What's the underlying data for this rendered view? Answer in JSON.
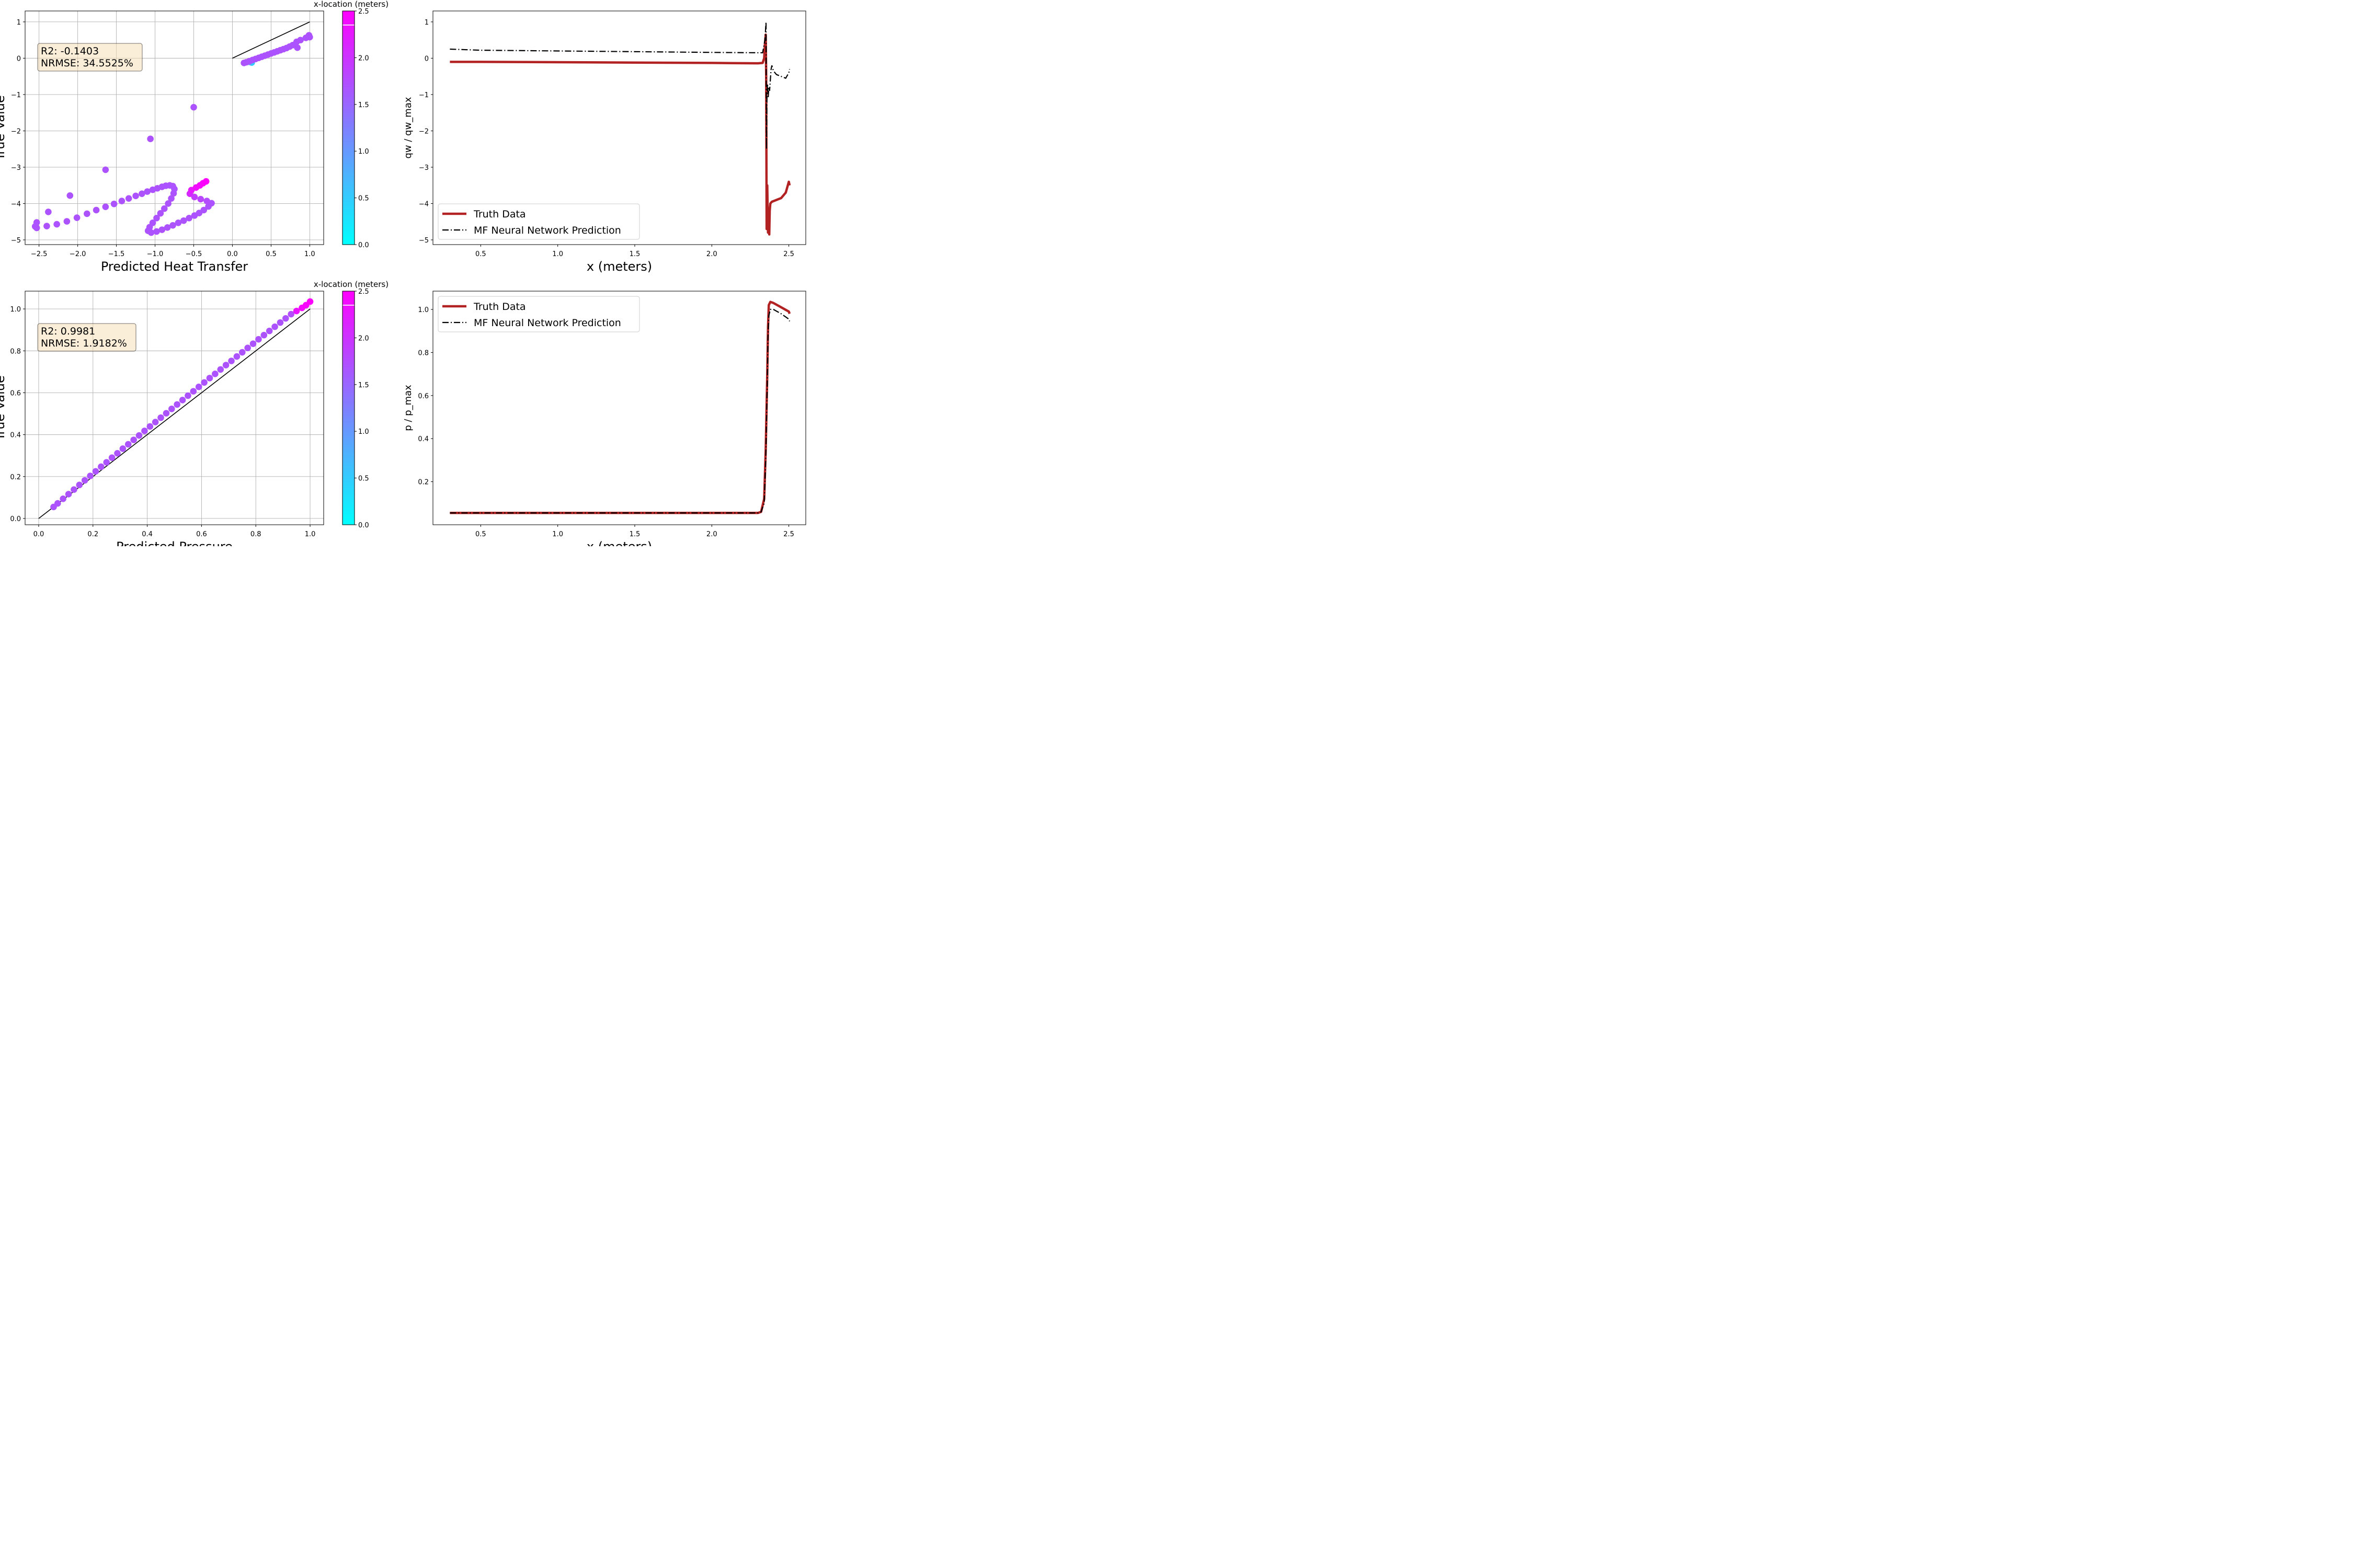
{
  "colors": {
    "cmap_low": "#00ffff",
    "cmap_high": "#ff00ff",
    "truth_line": "#b22222",
    "prediction_line": "#000000",
    "statbox_fill": "#f5deb3",
    "grid": "#b0b0b0"
  },
  "chart_data": [
    {
      "type": "scatter",
      "panel": "top-left",
      "xlabel": "Predicted Heat Transfer",
      "ylabel": "True Value",
      "xlim": [
        -2.68,
        1.18
      ],
      "ylim": [
        -5.13,
        1.3
      ],
      "xticks": [
        -2.5,
        -2.0,
        -1.5,
        -1.0,
        -0.5,
        0.0,
        0.5,
        1.0
      ],
      "xtick_labels": [
        "−2.5",
        "−2.0",
        "−1.5",
        "−1.0",
        "−0.5",
        "0.0",
        "0.5",
        "1.0"
      ],
      "yticks": [
        -5,
        -4,
        -3,
        -2,
        -1,
        0,
        1
      ],
      "ytick_labels": [
        "−5",
        "−4",
        "−3",
        "−2",
        "−1",
        "0",
        "1"
      ],
      "grid": true,
      "reference_line": [
        [
          0,
          0
        ],
        [
          1,
          1
        ]
      ],
      "stats_lines": [
        "R2: -0.1403",
        "NRMSE: 34.5525%"
      ],
      "colorbar": {
        "label": "x-location (meters)",
        "range": [
          0.0,
          2.5
        ],
        "ticks": [
          "0.0",
          "0.5",
          "1.0",
          "1.5",
          "2.0",
          "2.5"
        ],
        "marker_value": 2.35,
        "colormap": "cool"
      },
      "points": [
        {
          "x": 0.25,
          "y": -0.12,
          "c": 0.5
        },
        {
          "x": 0.22,
          "y": -0.1,
          "c": 0.9
        },
        {
          "x": 0.15,
          "y": -0.13,
          "c": 1.7
        },
        {
          "x": 0.18,
          "y": -0.11,
          "c": 1.7
        },
        {
          "x": 0.22,
          "y": -0.08,
          "c": 1.7
        },
        {
          "x": 0.26,
          "y": -0.05,
          "c": 1.7
        },
        {
          "x": 0.3,
          "y": -0.02,
          "c": 1.7
        },
        {
          "x": 0.34,
          "y": 0.01,
          "c": 1.7
        },
        {
          "x": 0.38,
          "y": 0.04,
          "c": 1.7
        },
        {
          "x": 0.42,
          "y": 0.07,
          "c": 1.7
        },
        {
          "x": 0.46,
          "y": 0.1,
          "c": 1.7
        },
        {
          "x": 0.5,
          "y": 0.13,
          "c": 1.7
        },
        {
          "x": 0.54,
          "y": 0.16,
          "c": 1.7
        },
        {
          "x": 0.58,
          "y": 0.19,
          "c": 1.7
        },
        {
          "x": 0.62,
          "y": 0.22,
          "c": 1.7
        },
        {
          "x": 0.66,
          "y": 0.25,
          "c": 1.7
        },
        {
          "x": 0.7,
          "y": 0.28,
          "c": 1.7
        },
        {
          "x": 0.74,
          "y": 0.32,
          "c": 1.7
        },
        {
          "x": 0.78,
          "y": 0.36,
          "c": 1.7
        },
        {
          "x": 0.83,
          "y": 0.45,
          "c": 1.7
        },
        {
          "x": 0.88,
          "y": 0.5,
          "c": 1.7
        },
        {
          "x": 0.95,
          "y": 0.56,
          "c": 1.7
        },
        {
          "x": 0.99,
          "y": 0.63,
          "c": 1.7
        },
        {
          "x": 1.0,
          "y": 0.58,
          "c": 1.7
        },
        {
          "x": 0.84,
          "y": 0.29,
          "c": 1.7
        },
        {
          "x": -0.5,
          "y": -1.35,
          "c": 1.7
        },
        {
          "x": -1.06,
          "y": -2.22,
          "c": 1.7
        },
        {
          "x": -1.64,
          "y": -3.07,
          "c": 1.7
        },
        {
          "x": -2.1,
          "y": -3.78,
          "c": 1.7
        },
        {
          "x": -2.38,
          "y": -4.23,
          "c": 1.7
        },
        {
          "x": -2.53,
          "y": -4.52,
          "c": 1.7
        },
        {
          "x": -2.55,
          "y": -4.63,
          "c": 1.7
        },
        {
          "x": -2.53,
          "y": -4.67,
          "c": 1.7
        },
        {
          "x": -2.4,
          "y": -4.62,
          "c": 1.7
        },
        {
          "x": -2.27,
          "y": -4.57,
          "c": 1.7
        },
        {
          "x": -2.14,
          "y": -4.49,
          "c": 1.7
        },
        {
          "x": -2.01,
          "y": -4.39,
          "c": 1.7
        },
        {
          "x": -1.88,
          "y": -4.28,
          "c": 1.7
        },
        {
          "x": -1.76,
          "y": -4.18,
          "c": 1.7
        },
        {
          "x": -1.64,
          "y": -4.09,
          "c": 1.7
        },
        {
          "x": -1.53,
          "y": -4.01,
          "c": 1.7
        },
        {
          "x": -1.43,
          "y": -3.93,
          "c": 1.7
        },
        {
          "x": -1.34,
          "y": -3.86,
          "c": 1.7
        },
        {
          "x": -1.25,
          "y": -3.79,
          "c": 1.7
        },
        {
          "x": -1.17,
          "y": -3.73,
          "c": 1.7
        },
        {
          "x": -1.1,
          "y": -3.67,
          "c": 1.7
        },
        {
          "x": -1.03,
          "y": -3.62,
          "c": 1.7
        },
        {
          "x": -0.97,
          "y": -3.58,
          "c": 1.7
        },
        {
          "x": -0.91,
          "y": -3.54,
          "c": 1.7
        },
        {
          "x": -0.86,
          "y": -3.51,
          "c": 1.7
        },
        {
          "x": -0.81,
          "y": -3.5,
          "c": 1.7
        },
        {
          "x": -0.77,
          "y": -3.52,
          "c": 1.7
        },
        {
          "x": -0.75,
          "y": -3.6,
          "c": 1.7
        },
        {
          "x": -0.76,
          "y": -3.72,
          "c": 1.7
        },
        {
          "x": -0.79,
          "y": -3.86,
          "c": 1.7
        },
        {
          "x": -0.83,
          "y": -4.0,
          "c": 1.7
        },
        {
          "x": -0.88,
          "y": -4.14,
          "c": 1.7
        },
        {
          "x": -0.93,
          "y": -4.27,
          "c": 1.7
        },
        {
          "x": -0.98,
          "y": -4.4,
          "c": 1.7
        },
        {
          "x": -1.03,
          "y": -4.53,
          "c": 1.7
        },
        {
          "x": -1.07,
          "y": -4.65,
          "c": 1.7
        },
        {
          "x": -1.09,
          "y": -4.75,
          "c": 1.7
        },
        {
          "x": -1.05,
          "y": -4.8,
          "c": 1.7
        },
        {
          "x": -0.98,
          "y": -4.77,
          "c": 1.7
        },
        {
          "x": -0.91,
          "y": -4.72,
          "c": 1.7
        },
        {
          "x": -0.84,
          "y": -4.66,
          "c": 1.7
        },
        {
          "x": -0.77,
          "y": -4.6,
          "c": 1.7
        },
        {
          "x": -0.7,
          "y": -4.53,
          "c": 1.7
        },
        {
          "x": -0.63,
          "y": -4.47,
          "c": 1.7
        },
        {
          "x": -0.56,
          "y": -4.4,
          "c": 1.7
        },
        {
          "x": -0.49,
          "y": -4.33,
          "c": 1.7
        },
        {
          "x": -0.43,
          "y": -4.26,
          "c": 1.7
        },
        {
          "x": -0.37,
          "y": -4.18,
          "c": 1.7
        },
        {
          "x": -0.31,
          "y": -4.08,
          "c": 1.7
        },
        {
          "x": -0.27,
          "y": -3.99,
          "c": 1.7
        },
        {
          "x": -0.33,
          "y": -3.93,
          "c": 1.75
        },
        {
          "x": -0.41,
          "y": -3.88,
          "c": 1.8
        },
        {
          "x": -0.49,
          "y": -3.82,
          "c": 1.9
        },
        {
          "x": -0.55,
          "y": -3.73,
          "c": 2.1
        },
        {
          "x": -0.53,
          "y": -3.63,
          "c": 2.25
        },
        {
          "x": -0.47,
          "y": -3.56,
          "c": 2.35
        },
        {
          "x": -0.42,
          "y": -3.5,
          "c": 2.4
        },
        {
          "x": -0.38,
          "y": -3.44,
          "c": 2.45
        },
        {
          "x": -0.34,
          "y": -3.39,
          "c": 2.5
        }
      ]
    },
    {
      "type": "line",
      "panel": "top-right",
      "xlabel": "x (meters)",
      "ylabel": "qw / qw_max",
      "xlim": [
        0.19,
        2.61
      ],
      "ylim": [
        -5.13,
        1.3
      ],
      "xticks": [
        0.5,
        1.0,
        1.5,
        2.0,
        2.5
      ],
      "xtick_labels": [
        "0.5",
        "1.0",
        "1.5",
        "2.0",
        "2.5"
      ],
      "yticks": [
        -5,
        -4,
        -3,
        -2,
        -1,
        0,
        1
      ],
      "ytick_labels": [
        "−5",
        "−4",
        "−3",
        "−2",
        "−1",
        "0",
        "1"
      ],
      "grid": false,
      "legend_position": "lower-left",
      "series": [
        {
          "name": "Truth Data",
          "style": "solid",
          "x": [
            0.3,
            0.5,
            1.0,
            1.5,
            2.0,
            2.3,
            2.33,
            2.34,
            2.345,
            2.35,
            2.353,
            2.356,
            2.36,
            2.365,
            2.37,
            2.373,
            2.376,
            2.38,
            2.39,
            2.42,
            2.45,
            2.48,
            2.5,
            2.505
          ],
          "y": [
            -0.1,
            -0.1,
            -0.11,
            -0.12,
            -0.13,
            -0.14,
            -0.13,
            0.0,
            0.4,
            0.65,
            -0.5,
            -4.7,
            -3.5,
            -4.8,
            -4.5,
            -4.85,
            -4.2,
            -4.0,
            -3.95,
            -3.9,
            -3.85,
            -3.7,
            -3.4,
            -3.5
          ]
        },
        {
          "name": "MF Neural Network Prediction",
          "style": "dashdot",
          "x": [
            0.3,
            0.5,
            1.0,
            1.5,
            2.0,
            2.3,
            2.33,
            2.345,
            2.352,
            2.355,
            2.358,
            2.362,
            2.366,
            2.37,
            2.375,
            2.38,
            2.385,
            2.39,
            2.4,
            2.42,
            2.45,
            2.48,
            2.5,
            2.505
          ],
          "y": [
            0.25,
            0.22,
            0.2,
            0.18,
            0.16,
            0.15,
            0.15,
            0.5,
            1.0,
            -2.5,
            -1.0,
            -0.7,
            -1.1,
            -0.8,
            -0.9,
            -0.6,
            -0.3,
            -0.2,
            -0.35,
            -0.45,
            -0.5,
            -0.55,
            -0.4,
            -0.3
          ]
        }
      ]
    },
    {
      "type": "scatter",
      "panel": "bottom-left",
      "xlabel": "Predicted Pressure",
      "ylabel": "True Value",
      "xlim": [
        -0.05,
        1.05
      ],
      "ylim": [
        -0.03,
        1.085
      ],
      "xticks": [
        0.0,
        0.2,
        0.4,
        0.6,
        0.8,
        1.0
      ],
      "xtick_labels": [
        "0.0",
        "0.2",
        "0.4",
        "0.6",
        "0.8",
        "1.0"
      ],
      "yticks": [
        0.0,
        0.2,
        0.4,
        0.6,
        0.8,
        1.0
      ],
      "ytick_labels": [
        "0.0",
        "0.2",
        "0.4",
        "0.6",
        "0.8",
        "1.0"
      ],
      "grid": true,
      "reference_line": [
        [
          0,
          0
        ],
        [
          1,
          1
        ]
      ],
      "stats_lines": [
        "R2: 0.9981",
        "NRMSE: 1.9182%"
      ],
      "colorbar": {
        "label": "x-location (meters)",
        "range": [
          0.0,
          2.5
        ],
        "ticks": [
          "0.0",
          "0.5",
          "1.0",
          "1.5",
          "2.0",
          "2.5"
        ],
        "marker_value": 2.35,
        "colormap": "cool"
      },
      "points": [
        {
          "x": 0.055,
          "y": 0.055,
          "c": 1.7
        },
        {
          "x": 0.07,
          "y": 0.072,
          "c": 1.7
        },
        {
          "x": 0.09,
          "y": 0.094,
          "c": 1.7
        },
        {
          "x": 0.11,
          "y": 0.116,
          "c": 1.7
        },
        {
          "x": 0.13,
          "y": 0.138,
          "c": 1.7
        },
        {
          "x": 0.15,
          "y": 0.16,
          "c": 1.7
        },
        {
          "x": 0.17,
          "y": 0.182,
          "c": 1.7
        },
        {
          "x": 0.19,
          "y": 0.203,
          "c": 1.7
        },
        {
          "x": 0.21,
          "y": 0.225,
          "c": 1.7
        },
        {
          "x": 0.23,
          "y": 0.247,
          "c": 1.7
        },
        {
          "x": 0.25,
          "y": 0.268,
          "c": 1.7
        },
        {
          "x": 0.27,
          "y": 0.29,
          "c": 1.7
        },
        {
          "x": 0.29,
          "y": 0.311,
          "c": 1.7
        },
        {
          "x": 0.31,
          "y": 0.333,
          "c": 1.7
        },
        {
          "x": 0.33,
          "y": 0.354,
          "c": 1.7
        },
        {
          "x": 0.35,
          "y": 0.375,
          "c": 1.7
        },
        {
          "x": 0.37,
          "y": 0.396,
          "c": 1.7
        },
        {
          "x": 0.39,
          "y": 0.418,
          "c": 1.7
        },
        {
          "x": 0.41,
          "y": 0.439,
          "c": 1.7
        },
        {
          "x": 0.43,
          "y": 0.46,
          "c": 1.7
        },
        {
          "x": 0.45,
          "y": 0.481,
          "c": 1.7
        },
        {
          "x": 0.47,
          "y": 0.502,
          "c": 1.7
        },
        {
          "x": 0.49,
          "y": 0.523,
          "c": 1.7
        },
        {
          "x": 0.51,
          "y": 0.544,
          "c": 1.7
        },
        {
          "x": 0.53,
          "y": 0.565,
          "c": 1.7
        },
        {
          "x": 0.55,
          "y": 0.586,
          "c": 1.7
        },
        {
          "x": 0.57,
          "y": 0.607,
          "c": 1.7
        },
        {
          "x": 0.59,
          "y": 0.628,
          "c": 1.7
        },
        {
          "x": 0.61,
          "y": 0.649,
          "c": 1.7
        },
        {
          "x": 0.63,
          "y": 0.67,
          "c": 1.7
        },
        {
          "x": 0.65,
          "y": 0.69,
          "c": 1.7
        },
        {
          "x": 0.67,
          "y": 0.711,
          "c": 1.7
        },
        {
          "x": 0.69,
          "y": 0.732,
          "c": 1.7
        },
        {
          "x": 0.71,
          "y": 0.752,
          "c": 1.7
        },
        {
          "x": 0.73,
          "y": 0.773,
          "c": 1.7
        },
        {
          "x": 0.75,
          "y": 0.793,
          "c": 1.7
        },
        {
          "x": 0.77,
          "y": 0.814,
          "c": 1.7
        },
        {
          "x": 0.79,
          "y": 0.834,
          "c": 1.7
        },
        {
          "x": 0.81,
          "y": 0.855,
          "c": 1.7
        },
        {
          "x": 0.83,
          "y": 0.875,
          "c": 1.7
        },
        {
          "x": 0.85,
          "y": 0.895,
          "c": 1.7
        },
        {
          "x": 0.87,
          "y": 0.915,
          "c": 1.7
        },
        {
          "x": 0.89,
          "y": 0.935,
          "c": 1.7
        },
        {
          "x": 0.91,
          "y": 0.955,
          "c": 1.7
        },
        {
          "x": 0.93,
          "y": 0.975,
          "c": 1.75
        },
        {
          "x": 0.95,
          "y": 0.99,
          "c": 2.3
        },
        {
          "x": 0.97,
          "y": 1.005,
          "c": 2.4
        },
        {
          "x": 0.985,
          "y": 1.018,
          "c": 2.45
        },
        {
          "x": 1.0,
          "y": 1.035,
          "c": 2.5
        }
      ]
    },
    {
      "type": "line",
      "panel": "bottom-right",
      "xlabel": "x (meters)",
      "ylabel": "p / p_max",
      "xlim": [
        0.19,
        2.61
      ],
      "ylim": [
        0.0,
        1.085
      ],
      "xticks": [
        0.5,
        1.0,
        1.5,
        2.0,
        2.5
      ],
      "xtick_labels": [
        "0.5",
        "1.0",
        "1.5",
        "2.0",
        "2.5"
      ],
      "yticks": [
        0.2,
        0.4,
        0.6,
        0.8,
        1.0
      ],
      "ytick_labels": [
        "0.2",
        "0.4",
        "0.6",
        "0.8",
        "1.0"
      ],
      "grid": false,
      "legend_position": "upper-left",
      "series": [
        {
          "name": "Truth Data",
          "style": "solid",
          "x": [
            0.3,
            0.5,
            1.0,
            1.5,
            2.0,
            2.3,
            2.32,
            2.34,
            2.35,
            2.36,
            2.365,
            2.37,
            2.38,
            2.4,
            2.45,
            2.5,
            2.505
          ],
          "y": [
            0.055,
            0.055,
            0.055,
            0.055,
            0.055,
            0.055,
            0.06,
            0.12,
            0.35,
            0.7,
            0.92,
            1.02,
            1.035,
            1.03,
            1.01,
            0.99,
            0.98
          ]
        },
        {
          "name": "MF Neural Network Prediction",
          "style": "dashdot",
          "x": [
            0.3,
            0.5,
            1.0,
            1.5,
            2.0,
            2.3,
            2.32,
            2.34,
            2.35,
            2.36,
            2.365,
            2.37,
            2.38,
            2.4,
            2.45,
            2.5,
            2.505
          ],
          "y": [
            0.055,
            0.055,
            0.055,
            0.055,
            0.055,
            0.055,
            0.06,
            0.1,
            0.3,
            0.65,
            0.88,
            0.97,
            1.0,
            1.0,
            0.98,
            0.955,
            0.945
          ]
        }
      ]
    }
  ]
}
